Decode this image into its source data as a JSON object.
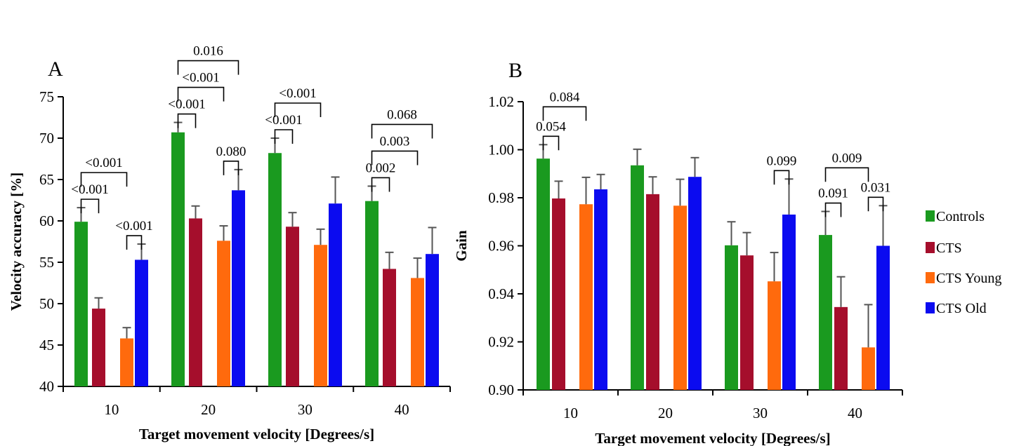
{
  "legend": [
    {
      "label": "Controls",
      "color": "#1a9a1f"
    },
    {
      "label": "CTS",
      "color": "#a50e2c"
    },
    {
      "label": "CTS Young",
      "color": "#ff6a0d"
    },
    {
      "label": "CTS Old",
      "color": "#0b0bf0"
    }
  ],
  "chart_data": [
    {
      "type": "bar",
      "panel_label": "A",
      "xlabel": "Target movement velocity [Degrees/s]",
      "ylabel": "Velocity accuracy [%]",
      "ylim": [
        40,
        75
      ],
      "yticks": [
        "40",
        "45",
        "50",
        "55",
        "60",
        "65",
        "70",
        "75"
      ],
      "categories": [
        "10",
        "20",
        "30",
        "40"
      ],
      "series": [
        {
          "name": "Controls",
          "values": [
            59.9,
            70.7,
            68.2,
            62.4
          ],
          "errors": [
            1.7,
            1.2,
            1.8,
            1.8
          ]
        },
        {
          "name": "CTS",
          "values": [
            49.4,
            60.3,
            59.3,
            54.2
          ],
          "errors": [
            1.3,
            1.5,
            1.7,
            2.0
          ]
        },
        {
          "name": "CTS Young",
          "values": [
            45.8,
            57.6,
            57.1,
            53.1
          ],
          "errors": [
            1.3,
            1.8,
            1.9,
            2.4
          ]
        },
        {
          "name": "CTS Old",
          "values": [
            55.3,
            63.7,
            62.1,
            56.0
          ],
          "errors": [
            1.9,
            2.5,
            3.2,
            3.2
          ]
        }
      ],
      "annotations": [
        {
          "text": "<0.001",
          "category": 0,
          "from": 0,
          "to": 1,
          "level": 0
        },
        {
          "text": "<0.001",
          "category": 0,
          "from": 0,
          "to": 2,
          "level": 1
        },
        {
          "text": "<0.001",
          "category": 0,
          "from": 2,
          "to": 3,
          "level": 0
        },
        {
          "text": "<0.001",
          "category": 1,
          "from": 0,
          "to": 1,
          "level": 0
        },
        {
          "text": "<0.001",
          "category": 1,
          "from": 0,
          "to": 2,
          "level": 1
        },
        {
          "text": "0.016",
          "category": 1,
          "from": 0,
          "to": 3,
          "level": 2
        },
        {
          "text": "0.080",
          "category": 1,
          "from": 2,
          "to": 3,
          "level": 0
        },
        {
          "text": "<0.001",
          "category": 2,
          "from": 0,
          "to": 1,
          "level": 0
        },
        {
          "text": "<0.001",
          "category": 2,
          "from": 0,
          "to": 2,
          "level": 1
        },
        {
          "text": "0.002",
          "category": 3,
          "from": 0,
          "to": 1,
          "level": 0
        },
        {
          "text": "0.003",
          "category": 3,
          "from": 0,
          "to": 2,
          "level": 1
        },
        {
          "text": "0.068",
          "category": 3,
          "from": 0,
          "to": 3,
          "level": 2
        }
      ]
    },
    {
      "type": "bar",
      "panel_label": "B",
      "xlabel": "Target movement velocity [Degrees/s]",
      "ylabel": "Gain",
      "ylim": [
        0.9,
        1.02
      ],
      "yticks": [
        "0.90",
        "0.92",
        "0.94",
        "0.96",
        "0.98",
        "1.00",
        "1.02"
      ],
      "categories": [
        "10",
        "20",
        "30",
        "40"
      ],
      "series": [
        {
          "name": "Controls",
          "values": [
            0.9963,
            0.9935,
            0.9602,
            0.9645
          ],
          "errors": [
            0.0058,
            0.0067,
            0.0098,
            0.0098
          ]
        },
        {
          "name": "CTS",
          "values": [
            0.9797,
            0.9815,
            0.956,
            0.9345
          ],
          "errors": [
            0.0072,
            0.0072,
            0.0095,
            0.0126
          ]
        },
        {
          "name": "CTS Young",
          "values": [
            0.9773,
            0.9767,
            0.9452,
            0.9177
          ],
          "errors": [
            0.0112,
            0.011,
            0.012,
            0.0178
          ]
        },
        {
          "name": "CTS Old",
          "values": [
            0.9835,
            0.9887,
            0.973,
            0.96
          ],
          "errors": [
            0.0062,
            0.008,
            0.0148,
            0.0167
          ]
        }
      ],
      "annotations": [
        {
          "text": "0.054",
          "category": 0,
          "from": 0,
          "to": 1,
          "level": 0
        },
        {
          "text": "0.084",
          "category": 0,
          "from": 0,
          "to": 2,
          "level": 1
        },
        {
          "text": "0.099",
          "category": 2,
          "from": 2,
          "to": 3,
          "level": 0
        },
        {
          "text": "0.091",
          "category": 3,
          "from": 0,
          "to": 1,
          "level": 0
        },
        {
          "text": "0.031",
          "category": 3,
          "from": 2,
          "to": 3,
          "level": 0
        },
        {
          "text": "0.009",
          "category": 3,
          "from": 0,
          "to": 2,
          "level": 1
        }
      ]
    }
  ]
}
